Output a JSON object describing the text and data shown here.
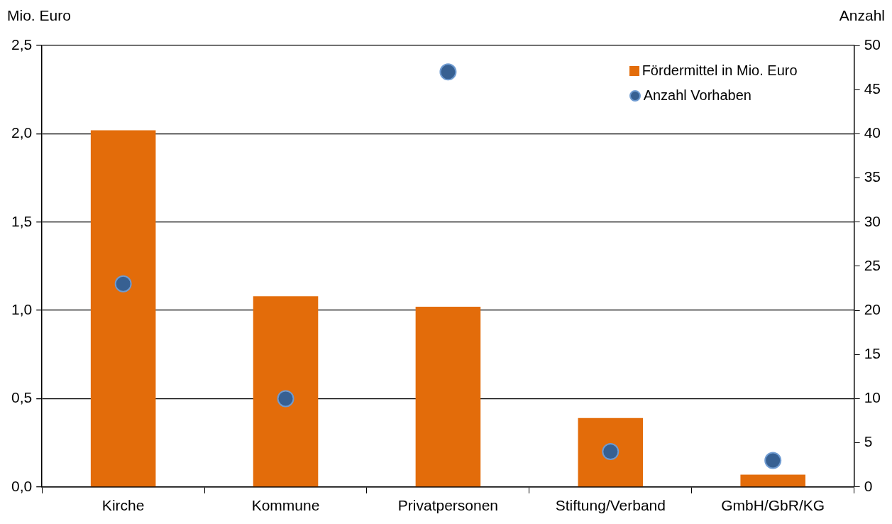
{
  "chart_data": {
    "type": "bar",
    "ylabel": "Mio. Euro",
    "y2label": "Anzahl",
    "categories": [
      "Kirche",
      "Kommune",
      "Privatpersonen",
      "Stiftung/Verband",
      "GmbH/GbR/KG"
    ],
    "series": [
      {
        "name": "Fördermittel in Mio. Euro",
        "color": "#e36c0a",
        "values": [
          2.02,
          1.08,
          1.02,
          0.39,
          0.07
        ]
      },
      {
        "name": "Anzahl Vorhaben",
        "type": "scatter",
        "axis": "y2",
        "color": "#376092",
        "x": [
          "Kirche",
          "Kommune",
          "Privatpersonen",
          "Stiftung/Verband",
          "GmbH/GbR/KG"
        ],
        "values": [
          23,
          10,
          47,
          4,
          3
        ]
      }
    ],
    "ylim": [
      0,
      2.5
    ],
    "yticks": [
      {
        "value": 0,
        "label": "0,0"
      },
      {
        "value": 0.5,
        "label": "0,5"
      },
      {
        "value": 1,
        "label": "1,0"
      },
      {
        "value": 1.5,
        "label": "1,5"
      },
      {
        "value": 2,
        "label": "2,0"
      },
      {
        "value": 2.5,
        "label": "2,5"
      }
    ],
    "y2lim": [
      0,
      50
    ],
    "y2ticks": [
      0,
      5,
      10,
      15,
      20,
      25,
      30,
      35,
      40,
      45,
      50
    ],
    "grid": "y",
    "legend": "top right",
    "marker": "circle"
  }
}
